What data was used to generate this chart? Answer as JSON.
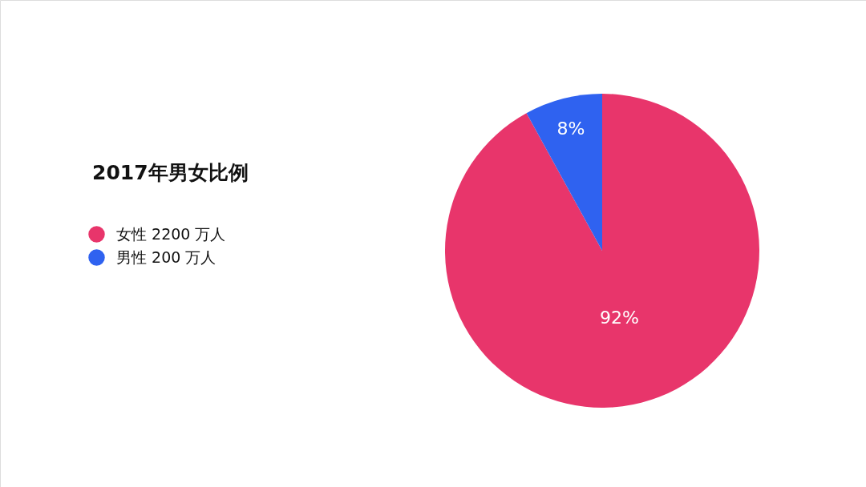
{
  "chart_data": {
    "type": "pie",
    "title": "2017年男女比例",
    "categories": [
      "女性 2200 万人",
      "男性 200 万人"
    ],
    "values": [
      92,
      8
    ],
    "colors": [
      "#e8356b",
      "#2f62f0"
    ],
    "value_labels": [
      "92%",
      "8%"
    ],
    "legend": "left"
  }
}
